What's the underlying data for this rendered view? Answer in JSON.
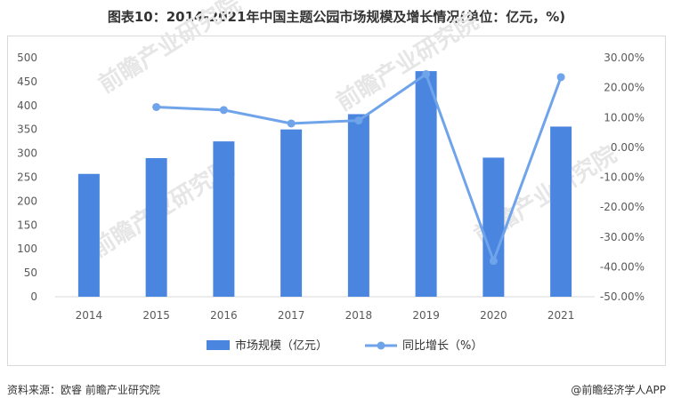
{
  "title": "图表10：2014-2021年中国主题公园市场规模及增长情况(单位：亿元，%)",
  "footer": {
    "source": "资料来源：欧睿 前瞻产业研究院",
    "brand": "@前瞻经济学人APP"
  },
  "watermark": "前瞻产业研究院",
  "colors": {
    "bar": "#4a86e0",
    "line": "#6fa3ea",
    "axis": "#595959",
    "grid": "#d9d9d9"
  },
  "chart_data": {
    "type": "bar",
    "categories": [
      "2014",
      "2015",
      "2016",
      "2017",
      "2018",
      "2019",
      "2020",
      "2021"
    ],
    "series": [
      {
        "name": "市场规模（亿元）",
        "type": "bar",
        "axis": "left",
        "values": [
          257,
          290,
          325,
          350,
          382,
          472,
          291,
          356
        ]
      },
      {
        "name": "同比增长（%）",
        "type": "line",
        "axis": "right",
        "values": [
          null,
          13.5,
          12.5,
          8.0,
          9.0,
          24.5,
          -38.0,
          23.5
        ]
      }
    ],
    "ylim_left": [
      0,
      500
    ],
    "ylim_right": [
      -50,
      30
    ],
    "left_ticks": [
      "0",
      "50",
      "100",
      "150",
      "200",
      "250",
      "300",
      "350",
      "400",
      "450",
      "500"
    ],
    "right_ticks": [
      "-50.00%",
      "-40.00%",
      "-30.00%",
      "-20.00%",
      "-10.00%",
      "0.00%",
      "10.00%",
      "20.00%",
      "30.00%"
    ],
    "legend_position": "bottom",
    "grid": false
  }
}
